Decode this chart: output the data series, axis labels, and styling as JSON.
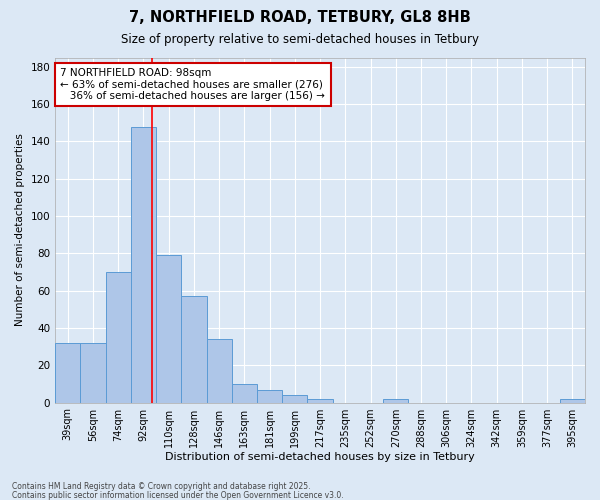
{
  "title": "7, NORTHFIELD ROAD, TETBURY, GL8 8HB",
  "subtitle": "Size of property relative to semi-detached houses in Tetbury",
  "xlabel": "Distribution of semi-detached houses by size in Tetbury",
  "ylabel": "Number of semi-detached properties",
  "categories": [
    "39sqm",
    "56sqm",
    "74sqm",
    "92sqm",
    "110sqm",
    "128sqm",
    "146sqm",
    "163sqm",
    "181sqm",
    "199sqm",
    "217sqm",
    "235sqm",
    "252sqm",
    "270sqm",
    "288sqm",
    "306sqm",
    "324sqm",
    "342sqm",
    "359sqm",
    "377sqm",
    "395sqm"
  ],
  "values": [
    32,
    32,
    70,
    148,
    79,
    57,
    34,
    10,
    7,
    4,
    2,
    0,
    0,
    2,
    0,
    0,
    0,
    0,
    0,
    0,
    2
  ],
  "bar_color": "#aec6e8",
  "bar_edge_color": "#5b9bd5",
  "background_color": "#dce8f5",
  "grid_color": "#ffffff",
  "annotation_text": "7 NORTHFIELD ROAD: 98sqm\n← 63% of semi-detached houses are smaller (276)\n   36% of semi-detached houses are larger (156) →",
  "annotation_box_color": "#ffffff",
  "annotation_box_edge_color": "#cc0000",
  "ylim": [
    0,
    185
  ],
  "yticks": [
    0,
    20,
    40,
    60,
    80,
    100,
    120,
    140,
    160,
    180
  ],
  "footer_line1": "Contains HM Land Registry data © Crown copyright and database right 2025.",
  "footer_line2": "Contains public sector information licensed under the Open Government Licence v3.0."
}
